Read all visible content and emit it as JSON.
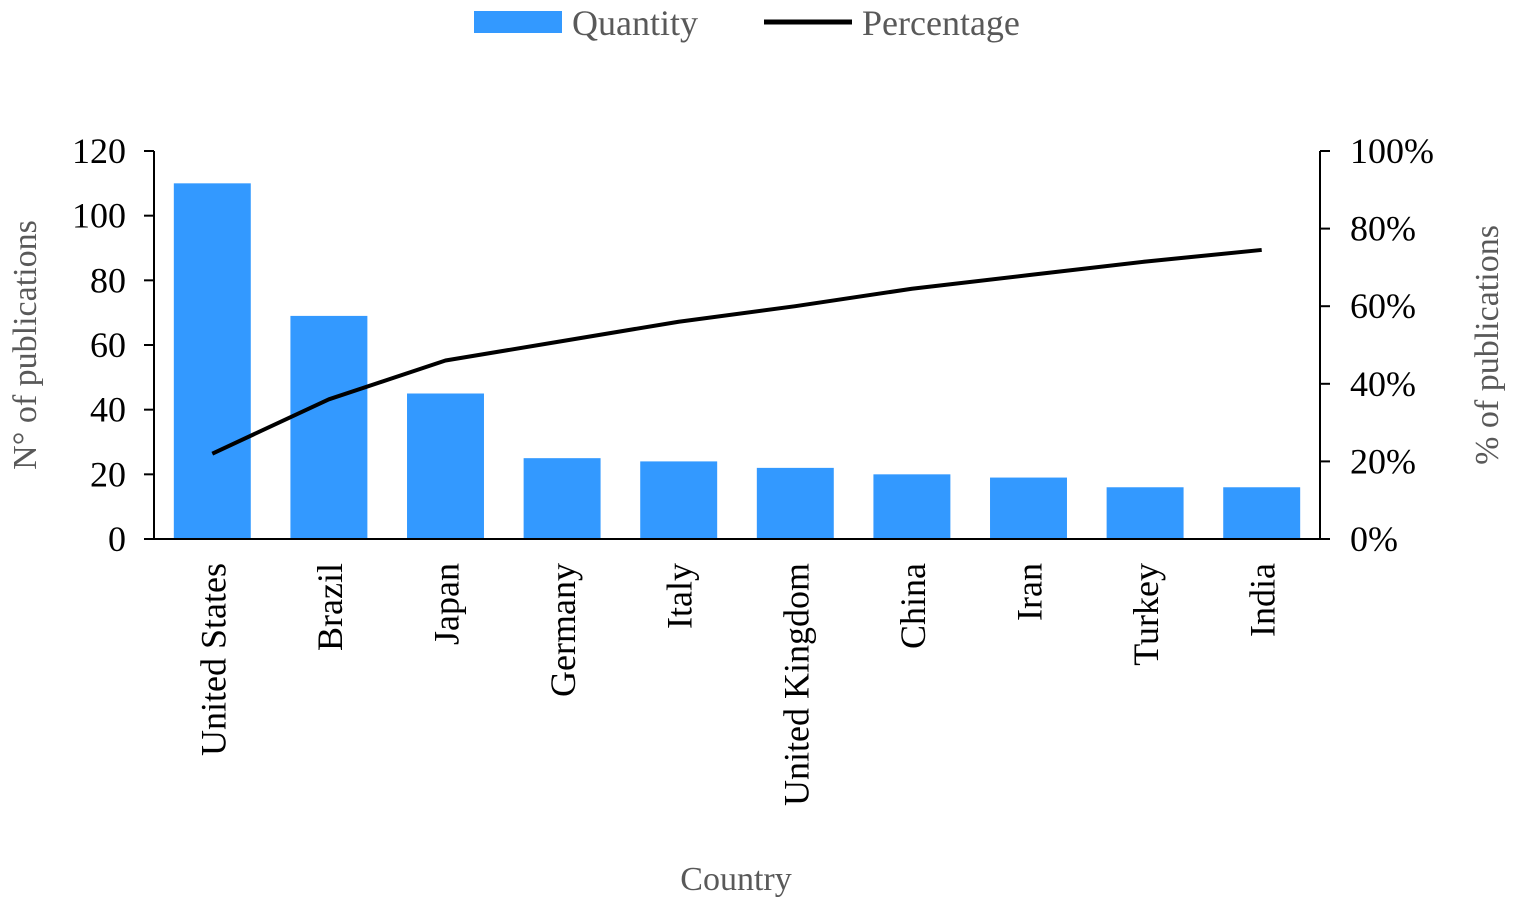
{
  "chart_data": {
    "type": "bar",
    "title": "",
    "xlabel": "Country",
    "ylabel": "N° of publications",
    "y2label": "% of publications",
    "ylim": [
      0,
      120
    ],
    "y2lim": [
      0,
      1
    ],
    "yticks": [
      "0",
      "20",
      "40",
      "60",
      "80",
      "100",
      "120"
    ],
    "y2ticks": [
      "0%",
      "20%",
      "40%",
      "60%",
      "80%",
      "100%"
    ],
    "legend_position": "top-center",
    "grid": false,
    "categories": [
      "United States",
      "Brazil",
      "Japan",
      "Germany",
      "Italy",
      "United Kingdom",
      "China",
      "Iran",
      "Turkey",
      "India"
    ],
    "series": [
      {
        "name": "Quantity",
        "kind": "bar",
        "axis": "left",
        "color": "#3399ff",
        "values": [
          110,
          69,
          45,
          25,
          24,
          22,
          20,
          19,
          16,
          16
        ]
      },
      {
        "name": "Percentage",
        "kind": "line",
        "axis": "right",
        "color": "#000000",
        "values": [
          0.22,
          0.36,
          0.46,
          0.51,
          0.56,
          0.6,
          0.645,
          0.68,
          0.715,
          0.745
        ]
      }
    ]
  }
}
